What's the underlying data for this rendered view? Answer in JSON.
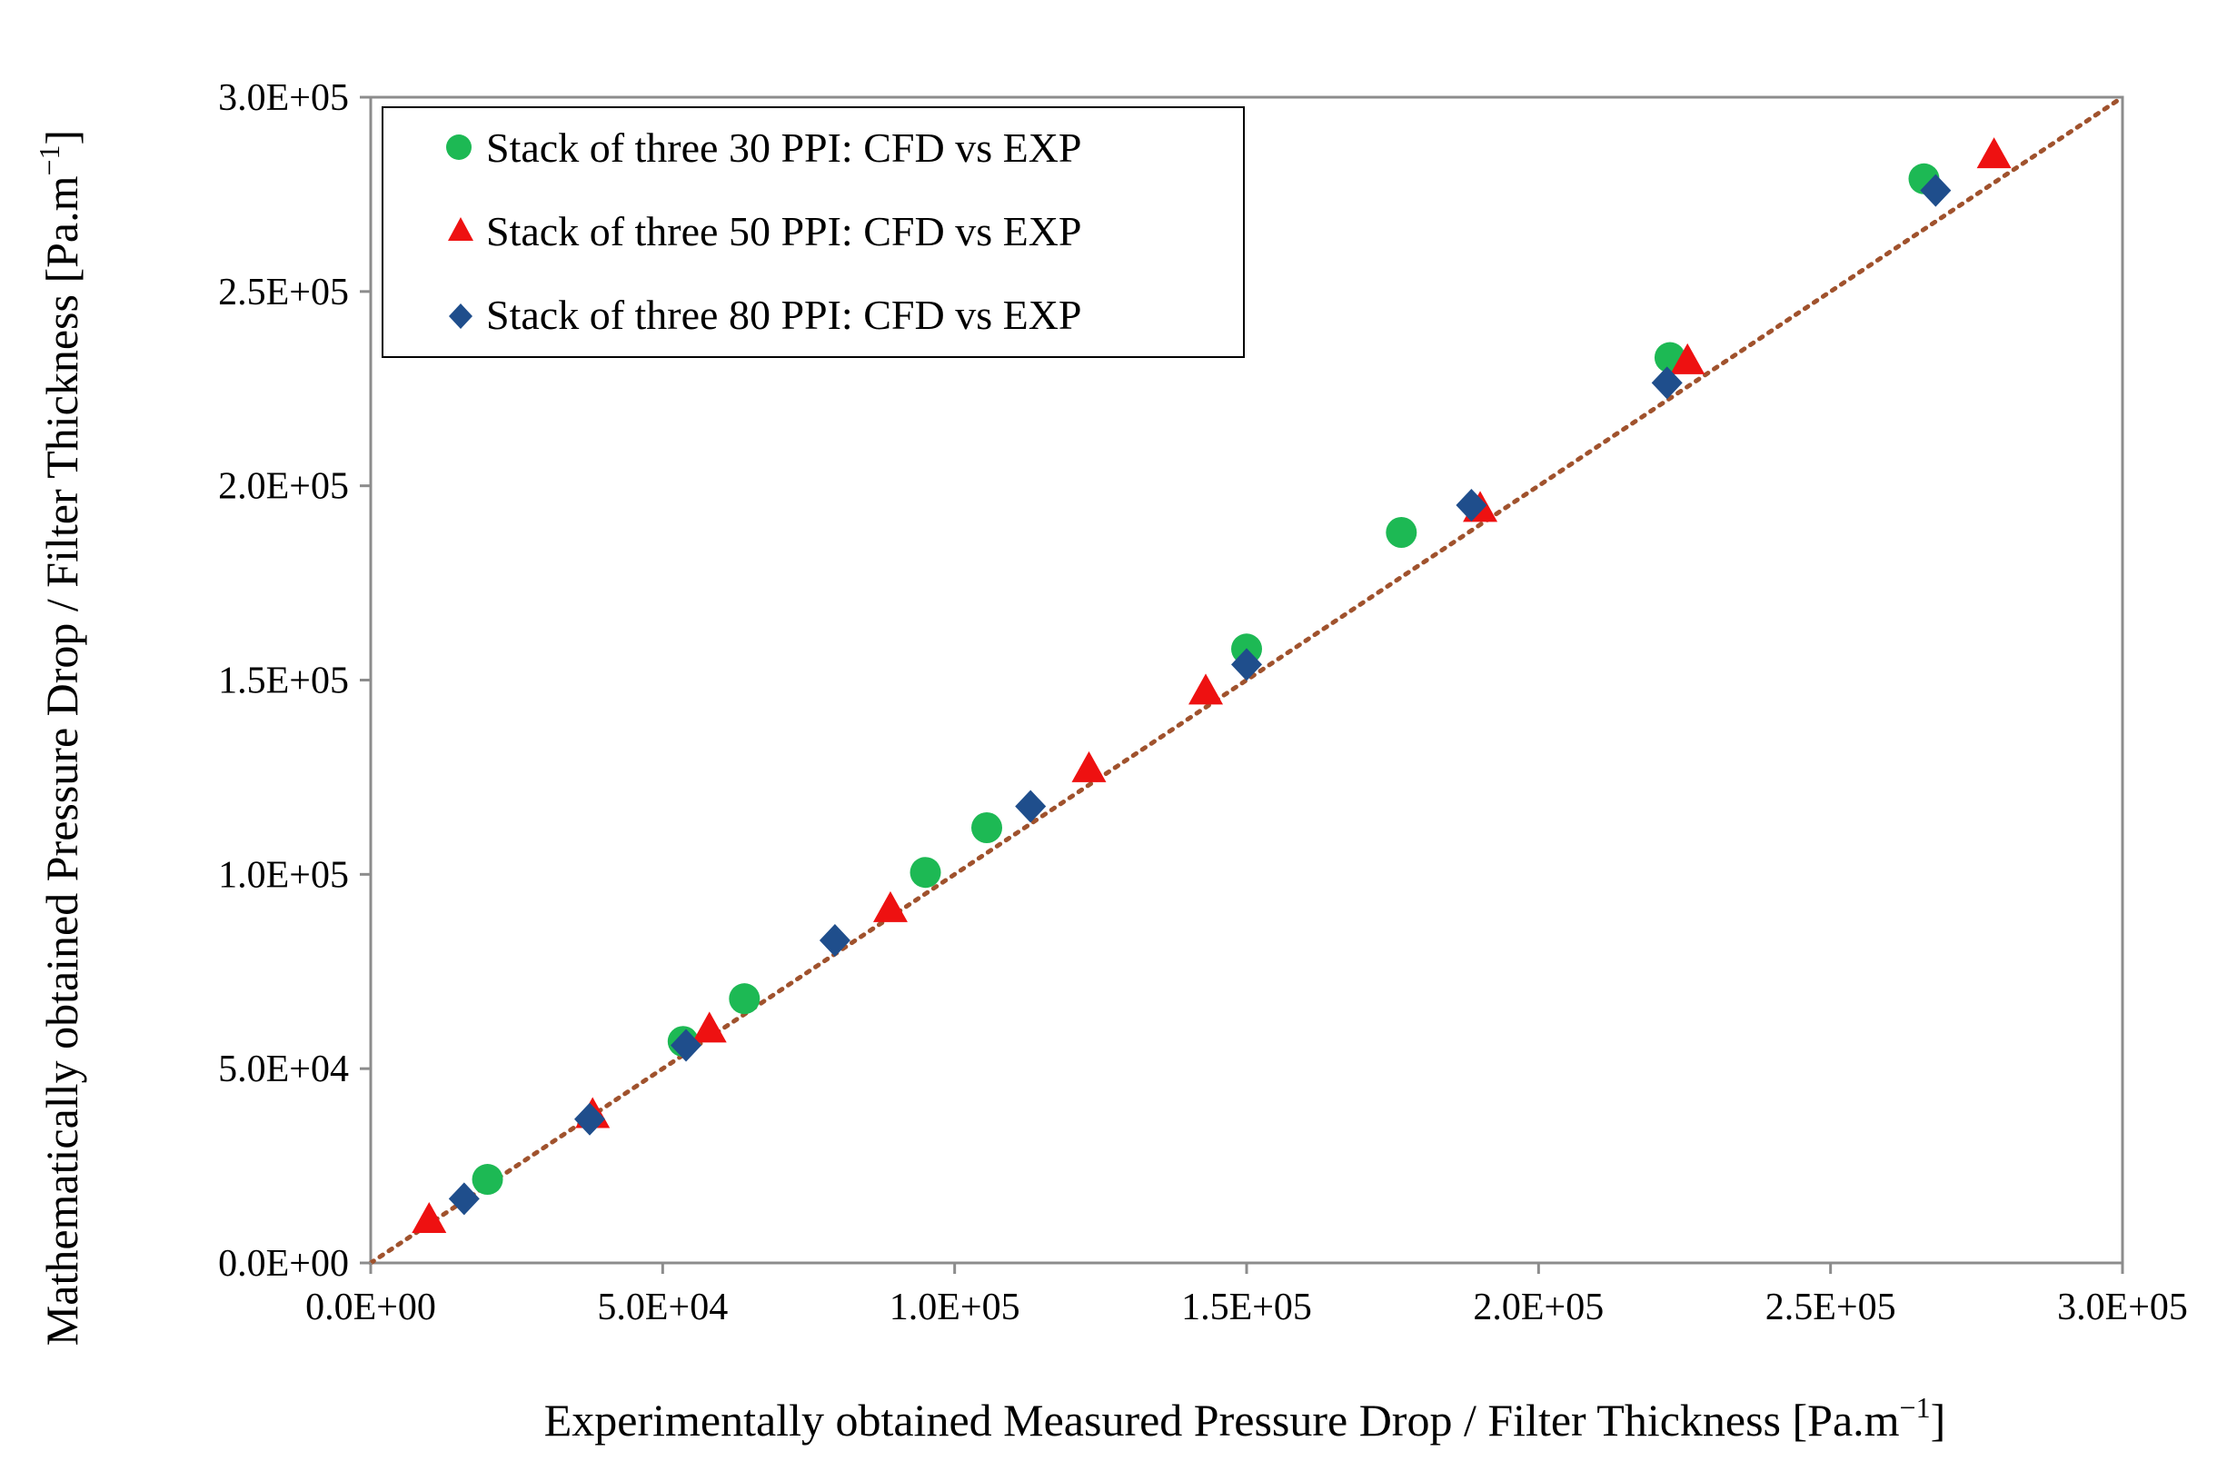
{
  "chart_data": {
    "type": "scatter",
    "title": "",
    "xlabel": "Experimentally obtained Measured Pressure Drop / Filter Thickness [Pa.m",
    "ylabel": "Mathematically obtained Pressure Drop / Filter Thickness [Pa.m",
    "unit_exponent": "−1",
    "axis_closing_bracket": "]",
    "xlim": [
      0,
      300000
    ],
    "ylim": [
      0,
      300000
    ],
    "x_ticks": [
      0,
      50000,
      100000,
      150000,
      200000,
      250000,
      300000
    ],
    "y_ticks": [
      0,
      50000,
      100000,
      150000,
      200000,
      250000,
      300000
    ],
    "x_tick_labels": [
      "0.0E+00",
      "5.0E+04",
      "1.0E+05",
      "1.5E+05",
      "2.0E+05",
      "2.5E+05",
      "3.0E+05"
    ],
    "y_tick_labels": [
      "0.0E+00",
      "5.0E+04",
      "1.0E+05",
      "1.5E+05",
      "2.0E+05",
      "2.5E+05",
      "3.0E+05"
    ],
    "grid": false,
    "legend_position": "top-left",
    "reference_line": {
      "name": "y = x",
      "from": [
        0,
        0
      ],
      "to": [
        300000,
        300000
      ],
      "color": "#a0522d",
      "style": "dotted"
    },
    "series": [
      {
        "name": "Stack of three 30 PPI: CFD vs EXP",
        "marker": "circle",
        "color": "#1db954",
        "points": [
          [
            20000,
            21500
          ],
          [
            53500,
            57000
          ],
          [
            64000,
            68000
          ],
          [
            95000,
            100500
          ],
          [
            105500,
            112000
          ],
          [
            150000,
            158000
          ],
          [
            176500,
            188000
          ],
          [
            222500,
            233000
          ],
          [
            266000,
            279000
          ]
        ]
      },
      {
        "name": "Stack of three 50 PPI: CFD vs EXP",
        "marker": "triangle",
        "color": "#ee1111",
        "points": [
          [
            10000,
            11000
          ],
          [
            38000,
            38000
          ],
          [
            58000,
            60000
          ],
          [
            89000,
            91000
          ],
          [
            123000,
            127000
          ],
          [
            143000,
            147000
          ],
          [
            190000,
            194000
          ],
          [
            225500,
            232000
          ],
          [
            278000,
            285000
          ]
        ]
      },
      {
        "name": "Stack of three 80 PPI: CFD vs EXP",
        "marker": "diamond",
        "color": "#1f4e8c",
        "points": [
          [
            16000,
            16500
          ],
          [
            37500,
            37000
          ],
          [
            54000,
            56000
          ],
          [
            79500,
            83000
          ],
          [
            113000,
            117500
          ],
          [
            150000,
            154000
          ],
          [
            188500,
            195000
          ],
          [
            222000,
            226500
          ],
          [
            268000,
            276000
          ]
        ]
      }
    ]
  }
}
